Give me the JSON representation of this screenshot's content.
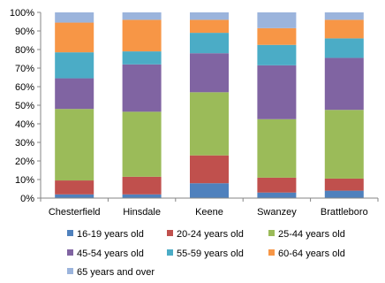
{
  "chart_data": {
    "type": "bar",
    "stacked": true,
    "percent": true,
    "categories": [
      "Chesterfield",
      "Hinsdale",
      "Keene",
      "Swanzey",
      "Brattleboro"
    ],
    "ylim": [
      0,
      100
    ],
    "yticks": [
      "0%",
      "10%",
      "20%",
      "30%",
      "40%",
      "50%",
      "60%",
      "70%",
      "80%",
      "90%",
      "100%"
    ],
    "grid": false,
    "legend_position": "bottom",
    "series": [
      {
        "name": "16-19 years old",
        "color": "#4f81bd",
        "values": [
          2,
          2,
          8,
          3,
          4
        ]
      },
      {
        "name": "20-24 years old",
        "color": "#c0504d",
        "values": [
          7.5,
          9.5,
          15,
          8,
          6.5
        ]
      },
      {
        "name": "25-44 years old",
        "color": "#9bbb59",
        "values": [
          38.5,
          35,
          34,
          31.5,
          37
        ]
      },
      {
        "name": "45-54 years old",
        "color": "#8064a2",
        "values": [
          16.5,
          25.5,
          21,
          29,
          28
        ]
      },
      {
        "name": "55-59 years old",
        "color": "#4bacc6",
        "values": [
          14,
          7,
          11,
          11,
          10.5
        ]
      },
      {
        "name": "60-64 years old",
        "color": "#f79646",
        "values": [
          16,
          17,
          7,
          9,
          10
        ]
      },
      {
        "name": "65 years and over",
        "color": "#9bb4dc",
        "values": [
          5.5,
          4,
          4,
          8.5,
          4
        ]
      }
    ]
  }
}
